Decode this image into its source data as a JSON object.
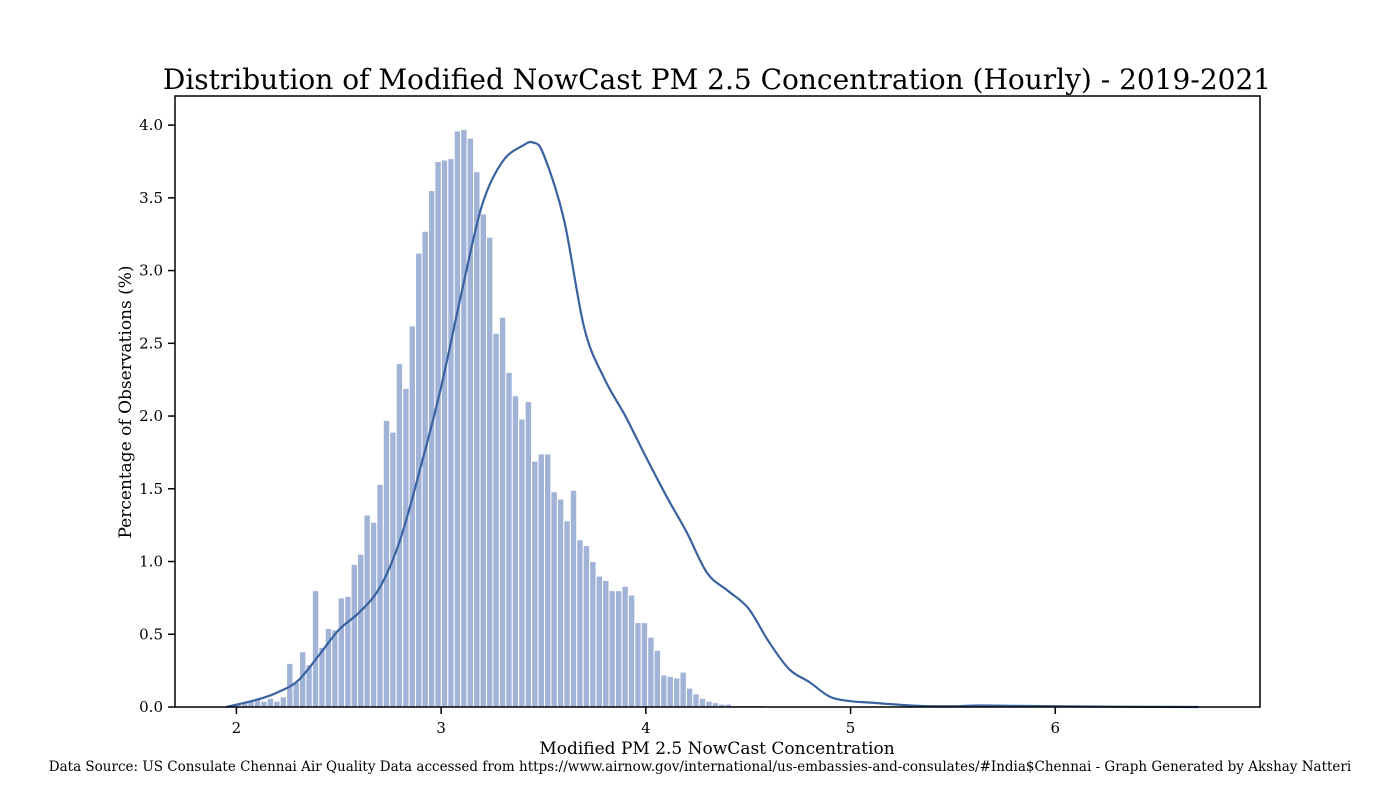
{
  "chart_data": {
    "type": "bar",
    "title": "Distribution of Modified NowCast PM 2.5 Concentration (Hourly) - 2019-2021",
    "xlabel": "Modified PM 2.5 NowCast Concentration",
    "ylabel": "Percentage of Observations (%)",
    "source_note": "Data Source: US Consulate Chennai Air Quality Data accessed from https://www.airnow.gov/international/us-embassies-and-consulates/#India$Chennai  - Graph Generated by Akshay Natteri",
    "xlim": [
      1.7,
      7.0
    ],
    "ylim": [
      0,
      4.2
    ],
    "x_ticks": [
      2,
      3,
      4,
      5,
      6
    ],
    "y_ticks": [
      0.0,
      0.5,
      1.0,
      1.5,
      2.0,
      2.5,
      3.0,
      3.5,
      4.0
    ],
    "x_tick_labels": [
      "2",
      "3",
      "4",
      "5",
      "6"
    ],
    "y_tick_labels": [
      "0.0",
      "0.5",
      "1.0",
      "1.5",
      "2.0",
      "2.5",
      "3.0",
      "3.5",
      "4.0"
    ],
    "bin_start": 1.93,
    "bin_width": 0.0315,
    "grid": false,
    "colors": {
      "bar": "#a1b4d8",
      "bar_edge": "#ffffff",
      "kde": "#3b62a0"
    },
    "series": [
      {
        "values": [
          0.0,
          0.01,
          0.02,
          0.03,
          0.04,
          0.06,
          0.04,
          0.06,
          0.04,
          0.07,
          0.3,
          0.17,
          0.38,
          0.29,
          0.8,
          0.41,
          0.54,
          0.53,
          0.75,
          0.76,
          0.98,
          1.05,
          1.32,
          1.27,
          1.53,
          1.97,
          1.89,
          2.36,
          2.19,
          2.62,
          3.12,
          3.27,
          3.55,
          3.75,
          3.76,
          3.77,
          3.96,
          3.97,
          3.91,
          3.68,
          3.39,
          3.23,
          2.57,
          2.68,
          2.3,
          2.14,
          1.98,
          2.1,
          1.69,
          1.74,
          1.74,
          1.48,
          1.43,
          1.28,
          1.49,
          1.15,
          1.11,
          1.0,
          0.9,
          0.87,
          0.8,
          0.8,
          0.83,
          0.77,
          0.58,
          0.58,
          0.48,
          0.39,
          0.22,
          0.21,
          0.2,
          0.24,
          0.13,
          0.09,
          0.06,
          0.04,
          0.03,
          0.02,
          0.02,
          0.01,
          0.01,
          0.01,
          0.01,
          0.01,
          0.0,
          0.0,
          0.0,
          0.0,
          0.0,
          0.0,
          0.0,
          0.0,
          0.0,
          0.0,
          0.0,
          0.0,
          0.0,
          0.0,
          0.0,
          0.0,
          0.0,
          0.0,
          0.0,
          0.0,
          0.0,
          0.0,
          0.0,
          0.0,
          0.0,
          0.0,
          0.0,
          0.0,
          0.0,
          0.0,
          0.0,
          0.0,
          0.0,
          0.0,
          0.0,
          0.0,
          0.0,
          0.0,
          0.0,
          0.0,
          0.0,
          0.0,
          0.0,
          0.0,
          0.0,
          0.0,
          0.0,
          0.0,
          0.0,
          0.0,
          0.0,
          0.0,
          0.0,
          0.0,
          0.0,
          0.0,
          0.0,
          0.0,
          0.0,
          0.0,
          0.0,
          0.0,
          0.0,
          0.0,
          0.0,
          0.0,
          0.0
        ]
      }
    ],
    "kde": {
      "x": [
        1.95,
        2.1,
        2.2,
        2.3,
        2.4,
        2.5,
        2.6,
        2.7,
        2.8,
        2.9,
        3.0,
        3.1,
        3.2,
        3.3,
        3.4,
        3.45,
        3.5,
        3.6,
        3.7,
        3.8,
        3.9,
        4.0,
        4.1,
        4.2,
        4.3,
        4.4,
        4.5,
        4.6,
        4.7,
        4.8,
        4.9,
        5.0,
        5.1,
        5.3,
        5.5,
        5.6,
        5.8,
        6.0,
        6.3,
        6.7
      ],
      "y": [
        0.0,
        0.05,
        0.1,
        0.18,
        0.35,
        0.53,
        0.65,
        0.82,
        1.15,
        1.65,
        2.2,
        2.85,
        3.45,
        3.75,
        3.86,
        3.88,
        3.8,
        3.35,
        2.6,
        2.25,
        2.0,
        1.72,
        1.45,
        1.2,
        0.92,
        0.8,
        0.68,
        0.45,
        0.26,
        0.17,
        0.07,
        0.04,
        0.03,
        0.01,
        0.005,
        0.01,
        0.008,
        0.005,
        0.002,
        0.0
      ]
    }
  }
}
